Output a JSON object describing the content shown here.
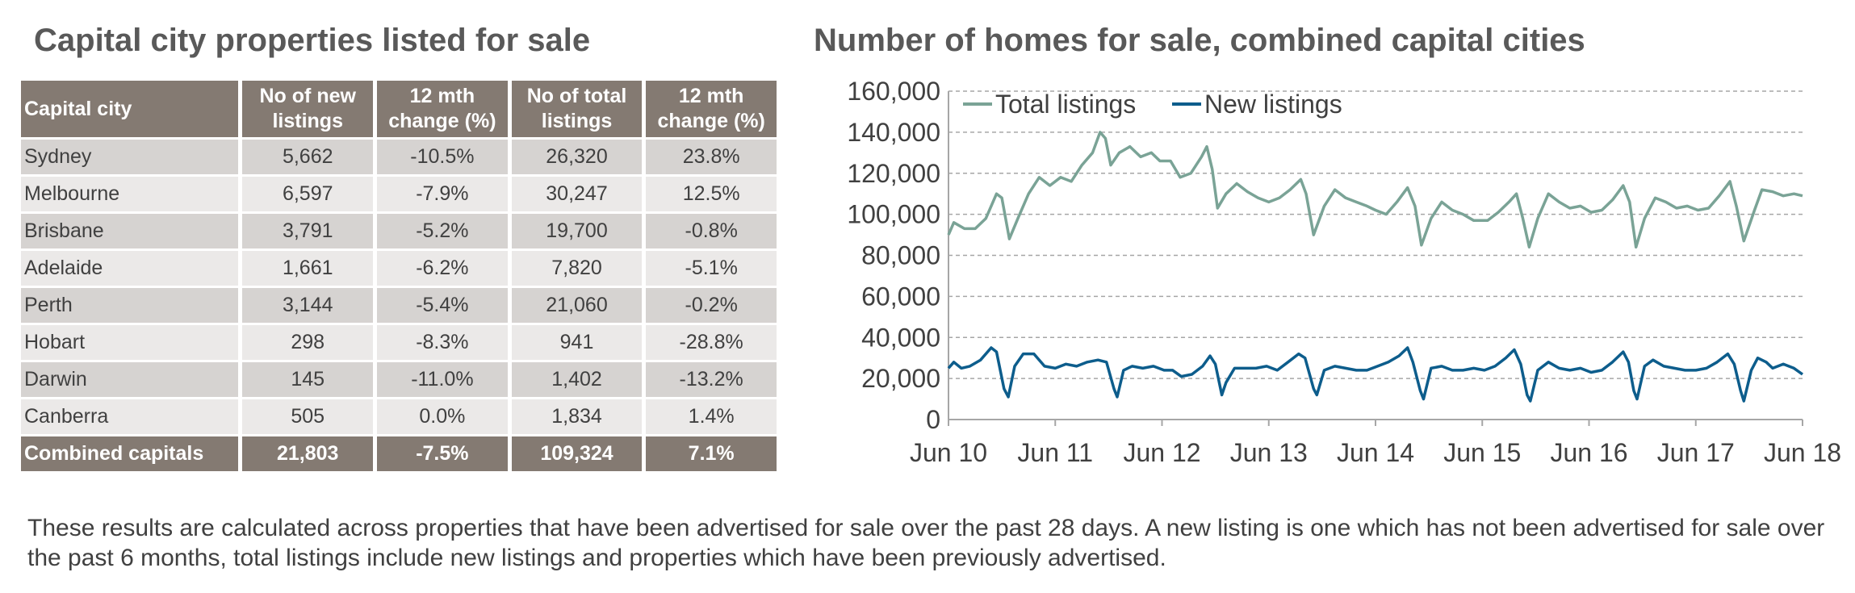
{
  "table": {
    "title": "Capital city properties listed for sale",
    "headers": [
      "Capital city",
      "No of new listings",
      "12 mth change (%)",
      "No of total listings",
      "12 mth change (%)"
    ],
    "rows": [
      [
        "Sydney",
        "5,662",
        "-10.5%",
        "26,320",
        "23.8%"
      ],
      [
        "Melbourne",
        "6,597",
        "-7.9%",
        "30,247",
        "12.5%"
      ],
      [
        "Brisbane",
        "3,791",
        "-5.2%",
        "19,700",
        "-0.8%"
      ],
      [
        "Adelaide",
        "1,661",
        "-6.2%",
        "7,820",
        "-5.1%"
      ],
      [
        "Perth",
        "3,144",
        "-5.4%",
        "21,060",
        "-0.2%"
      ],
      [
        "Hobart",
        "298",
        "-8.3%",
        "941",
        "-28.8%"
      ],
      [
        "Darwin",
        "145",
        "-11.0%",
        "1,402",
        "-13.2%"
      ],
      [
        "Canberra",
        "505",
        "0.0%",
        "1,834",
        "1.4%"
      ]
    ],
    "total": [
      "Combined capitals",
      "21,803",
      "-7.5%",
      "109,324",
      "7.1%"
    ]
  },
  "chart_data": {
    "type": "line",
    "title": "Number of homes for sale, combined capital cities",
    "xlabel": "",
    "ylabel": "",
    "ylim": [
      0,
      160000
    ],
    "yticks": [
      "0",
      "20,000",
      "40,000",
      "60,000",
      "80,000",
      "100,000",
      "120,000",
      "140,000",
      "160,000"
    ],
    "xlim": [
      2010.0,
      2018.0
    ],
    "xticks": [
      "Jun 10",
      "Jun 11",
      "Jun 12",
      "Jun 13",
      "Jun 14",
      "Jun 15",
      "Jun 16",
      "Jun 17",
      "Jun 18"
    ],
    "grid": "horizontal dashed",
    "legend_position": "top-left",
    "series": [
      {
        "name": "Total listings",
        "color": "#7aa396",
        "points": [
          [
            2010.0,
            90000
          ],
          [
            2010.05,
            96000
          ],
          [
            2010.15,
            93000
          ],
          [
            2010.25,
            93000
          ],
          [
            2010.35,
            98000
          ],
          [
            2010.45,
            110000
          ],
          [
            2010.5,
            108000
          ],
          [
            2010.57,
            88000
          ],
          [
            2010.65,
            98000
          ],
          [
            2010.75,
            110000
          ],
          [
            2010.85,
            118000
          ],
          [
            2010.95,
            114000
          ],
          [
            2011.05,
            118000
          ],
          [
            2011.15,
            116000
          ],
          [
            2011.25,
            124000
          ],
          [
            2011.35,
            130000
          ],
          [
            2011.42,
            140000
          ],
          [
            2011.47,
            137000
          ],
          [
            2011.52,
            124000
          ],
          [
            2011.6,
            130000
          ],
          [
            2011.7,
            133000
          ],
          [
            2011.8,
            128000
          ],
          [
            2011.9,
            130000
          ],
          [
            2011.98,
            126000
          ],
          [
            2012.08,
            126000
          ],
          [
            2012.17,
            118000
          ],
          [
            2012.27,
            120000
          ],
          [
            2012.37,
            128000
          ],
          [
            2012.42,
            133000
          ],
          [
            2012.47,
            122000
          ],
          [
            2012.52,
            103000
          ],
          [
            2012.6,
            110000
          ],
          [
            2012.7,
            115000
          ],
          [
            2012.8,
            111000
          ],
          [
            2012.9,
            108000
          ],
          [
            2013.0,
            106000
          ],
          [
            2013.1,
            108000
          ],
          [
            2013.2,
            112000
          ],
          [
            2013.3,
            117000
          ],
          [
            2013.35,
            110000
          ],
          [
            2013.42,
            90000
          ],
          [
            2013.52,
            104000
          ],
          [
            2013.62,
            112000
          ],
          [
            2013.72,
            108000
          ],
          [
            2013.82,
            106000
          ],
          [
            2013.92,
            104000
          ],
          [
            2014.0,
            102000
          ],
          [
            2014.1,
            100000
          ],
          [
            2014.2,
            106000
          ],
          [
            2014.3,
            113000
          ],
          [
            2014.37,
            104000
          ],
          [
            2014.43,
            85000
          ],
          [
            2014.52,
            98000
          ],
          [
            2014.62,
            106000
          ],
          [
            2014.72,
            102000
          ],
          [
            2014.82,
            100000
          ],
          [
            2014.92,
            97000
          ],
          [
            2015.05,
            97000
          ],
          [
            2015.15,
            101000
          ],
          [
            2015.25,
            106000
          ],
          [
            2015.32,
            110000
          ],
          [
            2015.38,
            98000
          ],
          [
            2015.44,
            84000
          ],
          [
            2015.52,
            98000
          ],
          [
            2015.62,
            110000
          ],
          [
            2015.72,
            106000
          ],
          [
            2015.82,
            103000
          ],
          [
            2015.92,
            104000
          ],
          [
            2016.02,
            101000
          ],
          [
            2016.12,
            102000
          ],
          [
            2016.22,
            107000
          ],
          [
            2016.32,
            114000
          ],
          [
            2016.38,
            106000
          ],
          [
            2016.44,
            84000
          ],
          [
            2016.52,
            98000
          ],
          [
            2016.62,
            108000
          ],
          [
            2016.72,
            106000
          ],
          [
            2016.82,
            103000
          ],
          [
            2016.92,
            104000
          ],
          [
            2017.02,
            102000
          ],
          [
            2017.12,
            103000
          ],
          [
            2017.22,
            109000
          ],
          [
            2017.32,
            116000
          ],
          [
            2017.38,
            104000
          ],
          [
            2017.45,
            87000
          ],
          [
            2017.55,
            102000
          ],
          [
            2017.62,
            112000
          ],
          [
            2017.72,
            111000
          ],
          [
            2017.82,
            109000
          ],
          [
            2017.92,
            110000
          ],
          [
            2018.0,
            109000
          ]
        ]
      },
      {
        "name": "New listings",
        "color": "#0d5d8c",
        "points": [
          [
            2010.0,
            25000
          ],
          [
            2010.05,
            28000
          ],
          [
            2010.12,
            25000
          ],
          [
            2010.2,
            26000
          ],
          [
            2010.3,
            29000
          ],
          [
            2010.4,
            35000
          ],
          [
            2010.45,
            33000
          ],
          [
            2010.52,
            15000
          ],
          [
            2010.56,
            11000
          ],
          [
            2010.62,
            26000
          ],
          [
            2010.7,
            32000
          ],
          [
            2010.8,
            32000
          ],
          [
            2010.9,
            26000
          ],
          [
            2011.0,
            25000
          ],
          [
            2011.1,
            27000
          ],
          [
            2011.2,
            26000
          ],
          [
            2011.3,
            28000
          ],
          [
            2011.4,
            29000
          ],
          [
            2011.48,
            28000
          ],
          [
            2011.55,
            15000
          ],
          [
            2011.58,
            11000
          ],
          [
            2011.64,
            24000
          ],
          [
            2011.72,
            26000
          ],
          [
            2011.82,
            25000
          ],
          [
            2011.92,
            26000
          ],
          [
            2012.02,
            24000
          ],
          [
            2012.1,
            24000
          ],
          [
            2012.18,
            21000
          ],
          [
            2012.28,
            22000
          ],
          [
            2012.38,
            26000
          ],
          [
            2012.45,
            31000
          ],
          [
            2012.5,
            27000
          ],
          [
            2012.56,
            12000
          ],
          [
            2012.6,
            18000
          ],
          [
            2012.68,
            25000
          ],
          [
            2012.78,
            25000
          ],
          [
            2012.88,
            25000
          ],
          [
            2012.98,
            26000
          ],
          [
            2013.08,
            24000
          ],
          [
            2013.18,
            28000
          ],
          [
            2013.28,
            32000
          ],
          [
            2013.34,
            30000
          ],
          [
            2013.42,
            15000
          ],
          [
            2013.45,
            12000
          ],
          [
            2013.52,
            24000
          ],
          [
            2013.62,
            26000
          ],
          [
            2013.72,
            25000
          ],
          [
            2013.82,
            24000
          ],
          [
            2013.92,
            24000
          ],
          [
            2014.02,
            26000
          ],
          [
            2014.12,
            28000
          ],
          [
            2014.22,
            31000
          ],
          [
            2014.3,
            35000
          ],
          [
            2014.35,
            28000
          ],
          [
            2014.42,
            14000
          ],
          [
            2014.45,
            10000
          ],
          [
            2014.52,
            25000
          ],
          [
            2014.62,
            26000
          ],
          [
            2014.72,
            24000
          ],
          [
            2014.82,
            24000
          ],
          [
            2014.92,
            25000
          ],
          [
            2015.02,
            24000
          ],
          [
            2015.12,
            26000
          ],
          [
            2015.22,
            30000
          ],
          [
            2015.3,
            34000
          ],
          [
            2015.36,
            27000
          ],
          [
            2015.42,
            12000
          ],
          [
            2015.45,
            9000
          ],
          [
            2015.52,
            24000
          ],
          [
            2015.62,
            28000
          ],
          [
            2015.72,
            25000
          ],
          [
            2015.82,
            24000
          ],
          [
            2015.92,
            25000
          ],
          [
            2016.02,
            23000
          ],
          [
            2016.12,
            24000
          ],
          [
            2016.22,
            28000
          ],
          [
            2016.32,
            33000
          ],
          [
            2016.37,
            28000
          ],
          [
            2016.42,
            14000
          ],
          [
            2016.45,
            10000
          ],
          [
            2016.52,
            26000
          ],
          [
            2016.6,
            29000
          ],
          [
            2016.7,
            26000
          ],
          [
            2016.8,
            25000
          ],
          [
            2016.9,
            24000
          ],
          [
            2017.0,
            24000
          ],
          [
            2017.1,
            25000
          ],
          [
            2017.2,
            28000
          ],
          [
            2017.3,
            32000
          ],
          [
            2017.36,
            27000
          ],
          [
            2017.42,
            14000
          ],
          [
            2017.45,
            9000
          ],
          [
            2017.52,
            24000
          ],
          [
            2017.58,
            30000
          ],
          [
            2017.66,
            28000
          ],
          [
            2017.72,
            25000
          ],
          [
            2017.82,
            27000
          ],
          [
            2017.92,
            25000
          ],
          [
            2018.0,
            22000
          ]
        ]
      }
    ]
  },
  "footnote": "These results are calculated across properties that have been advertised for sale over the past 28 days.  A new listing is one which has not been advertised for sale over the past 6 months, total listings include new listings and properties which have been previously advertised."
}
